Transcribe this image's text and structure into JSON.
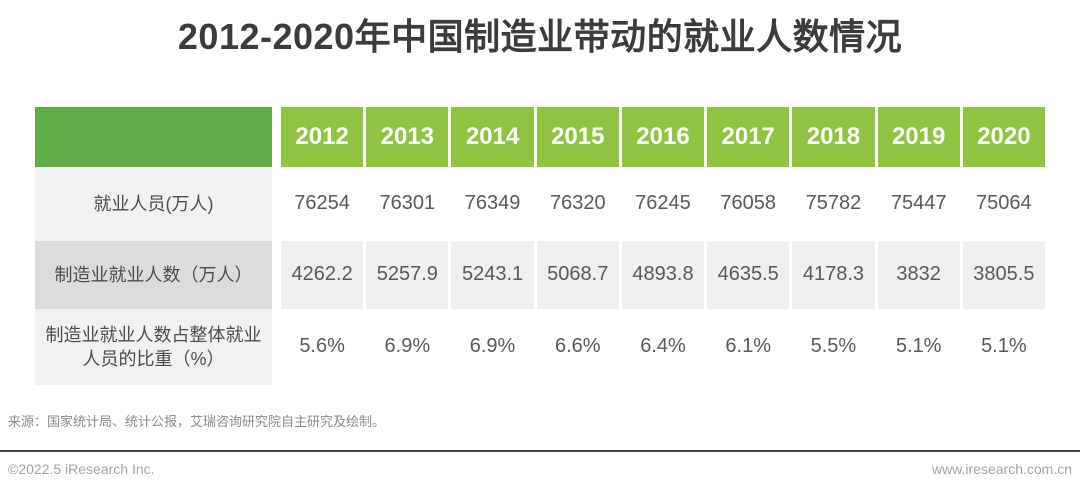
{
  "title": "2012-2020年中国制造业带动的就业人数情况",
  "table": {
    "years": [
      "2012",
      "2013",
      "2014",
      "2015",
      "2016",
      "2017",
      "2018",
      "2019",
      "2020"
    ],
    "rows": [
      {
        "label": "就业人员(万人)",
        "values": [
          "76254",
          "76301",
          "76349",
          "76320",
          "76245",
          "76058",
          "75782",
          "75447",
          "75064"
        ]
      },
      {
        "label": "制造业就业人数（万人）",
        "values": [
          "4262.2",
          "5257.9",
          "5243.1",
          "5068.7",
          "4893.8",
          "4635.5",
          "4178.3",
          "3832",
          "3805.5"
        ]
      },
      {
        "label": "制造业就业人数占整体就业人员的比重（%）",
        "values": [
          "5.6%",
          "6.9%",
          "6.9%",
          "6.6%",
          "6.4%",
          "6.1%",
          "5.5%",
          "5.1%",
          "5.1%"
        ]
      }
    ]
  },
  "source": "来源：国家统计局、统计公报，艾瑞咨询研究院自主研究及绘制。",
  "footer": {
    "left": "©2022.5 iResearch Inc.",
    "right": "www.iresearch.com.cn"
  },
  "colors": {
    "header_label_green": "#61ab49",
    "header_year_green": "#8fc442",
    "label_light_gray": "#f1f1f1",
    "label_dark_gray": "#dcdcdc",
    "row_alt_gray": "#efefef",
    "title_text": "#3c3c3c",
    "divider_dark": "#41414b"
  },
  "chart_data": {
    "type": "table",
    "title": "2012-2020年中国制造业带动的就业人数情况",
    "categories": [
      "2012",
      "2013",
      "2014",
      "2015",
      "2016",
      "2017",
      "2018",
      "2019",
      "2020"
    ],
    "series": [
      {
        "name": "就业人员(万人)",
        "values": [
          76254,
          76301,
          76349,
          76320,
          76245,
          76058,
          75782,
          75447,
          75064
        ]
      },
      {
        "name": "制造业就业人数（万人）",
        "values": [
          4262.2,
          5257.9,
          5243.1,
          5068.7,
          4893.8,
          4635.5,
          4178.3,
          3832,
          3805.5
        ]
      },
      {
        "name": "制造业就业人数占整体就业人员的比重（%）",
        "values": [
          5.6,
          6.9,
          6.9,
          6.6,
          6.4,
          6.1,
          5.5,
          5.1,
          5.1
        ]
      }
    ],
    "source": "国家统计局、统计公报，艾瑞咨询研究院自主研究及绘制"
  }
}
